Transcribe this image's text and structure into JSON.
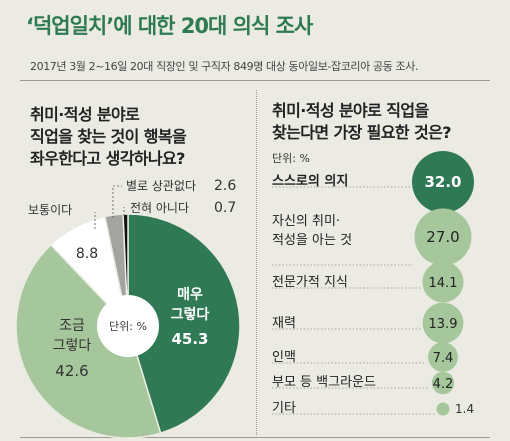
{
  "header": {
    "title": "‘덕업일치’에 대한 20대 의식 조사",
    "subtitle": "2017년 3월 2~16일 20대 직장인 및 구직자 849명 대상 동아일보-잡코리아 공동 조사."
  },
  "colors": {
    "title_green": "#2e7a52",
    "dark_green": "#2f7a55",
    "light_green": "#a6c79c",
    "gray": "#a3a3a0",
    "white": "#ffffff",
    "black": "#111111"
  },
  "chart_data": [
    {
      "type": "pie",
      "title_lines": [
        "취미·적성 분야로",
        "직업을 찾는 것이 행복을",
        "좌우한다고 생각하나요?"
      ],
      "unit_label": "단위: %",
      "slices": [
        {
          "label": "매우 그렇다",
          "label_lines": [
            "매우",
            "그렇다"
          ],
          "value": 45.3,
          "value_text": "45.3",
          "color": "#2f7a55"
        },
        {
          "label": "조금 그렇다",
          "label_lines": [
            "조금",
            "그렇다"
          ],
          "value": 42.6,
          "value_text": "42.6",
          "color": "#a6c79c"
        },
        {
          "label": "보통이다",
          "label_lines": [
            "보통이다"
          ],
          "value": 8.8,
          "value_text": "8.8",
          "color": "#ffffff"
        },
        {
          "label": "별로 상관없다",
          "label_lines": [
            "별로 상관없다"
          ],
          "value": 2.6,
          "value_text": "2.6",
          "color": "#a3a3a0"
        },
        {
          "label": "전혀 아니다",
          "label_lines": [
            "전혀 아니다"
          ],
          "value": 0.7,
          "value_text": "0.7",
          "color": "#111111"
        }
      ]
    },
    {
      "type": "bubble",
      "title_lines": [
        "취미·적성 분야로 직업을",
        "찾는다면 가장 필요한 것은?"
      ],
      "unit_label": "단위: %",
      "items": [
        {
          "label_lines": [
            "스스로의 의지"
          ],
          "value": 32.0,
          "value_text": "32.0"
        },
        {
          "label_lines": [
            "자신의 취미·",
            "적성을 아는 것"
          ],
          "value": 27.0,
          "value_text": "27.0"
        },
        {
          "label_lines": [
            "전문가적 지식"
          ],
          "value": 14.1,
          "value_text": "14.1"
        },
        {
          "label_lines": [
            "재력"
          ],
          "value": 13.9,
          "value_text": "13.9"
        },
        {
          "label_lines": [
            "인맥"
          ],
          "value": 7.4,
          "value_text": "7.4"
        },
        {
          "label_lines": [
            "부모 등 백그라운드"
          ],
          "value": 4.2,
          "value_text": "4.2"
        },
        {
          "label_lines": [
            "기타"
          ],
          "value": 1.4,
          "value_text": "1.4"
        }
      ]
    }
  ]
}
